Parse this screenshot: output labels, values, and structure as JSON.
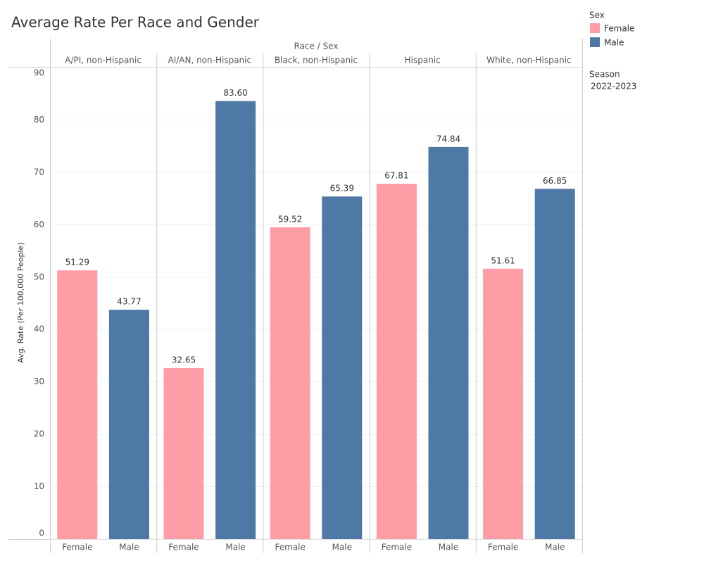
{
  "chart_data": {
    "type": "bar",
    "title": "Average Rate Per Race and Gender",
    "header": "Race / Sex",
    "y_label": "Avg. Rate (Per 100,000 People)",
    "legend_title": "Sex",
    "filter_title": "Season",
    "filter_value": "2022-2023",
    "categories": [
      "A/PI, non-Hispanic",
      "AI/AN, non-Hispanic",
      "Black, non-Hispanic",
      "Hispanic",
      "White, non-Hispanic"
    ],
    "series": [
      {
        "name": "Female",
        "color": "#ff9da7",
        "values": [
          51.29,
          32.65,
          59.52,
          67.81,
          51.61
        ],
        "value_labels": [
          "51.29",
          "32.65",
          "59.52",
          "67.81",
          "51.61"
        ]
      },
      {
        "name": "Male",
        "color": "#4e79a7",
        "values": [
          43.77,
          83.6,
          65.39,
          74.84,
          66.85
        ],
        "value_labels": [
          "43.77",
          "83.60",
          "65.39",
          "74.84",
          "66.85"
        ]
      }
    ],
    "ylim": [
      0,
      90
    ],
    "yticks": [
      0,
      10,
      20,
      30,
      40,
      50,
      60,
      70,
      80,
      90
    ],
    "grid": true
  }
}
